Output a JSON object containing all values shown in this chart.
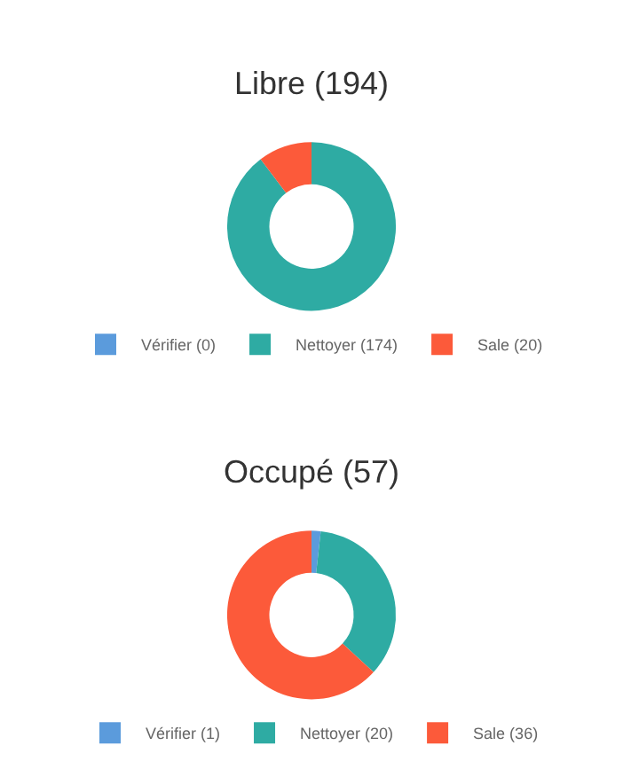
{
  "chart_data": [
    {
      "type": "donut",
      "title": "Libre (194)",
      "categories": [
        "Vérifier (0)",
        "Nettoyer (174)",
        "Sale (20)"
      ],
      "values": [
        0,
        174,
        20
      ],
      "colors": [
        "#5b9bdc",
        "#2eaba3",
        "#fc5a3a"
      ],
      "legend": "bottom"
    },
    {
      "type": "donut",
      "title": "Occupé (57)",
      "categories": [
        "Vérifier (1)",
        "Nettoyer (20)",
        "Sale (36)"
      ],
      "values": [
        1,
        20,
        36
      ],
      "colors": [
        "#5b9bdc",
        "#2eaba3",
        "#fc5a3a"
      ],
      "legend": "bottom"
    }
  ]
}
